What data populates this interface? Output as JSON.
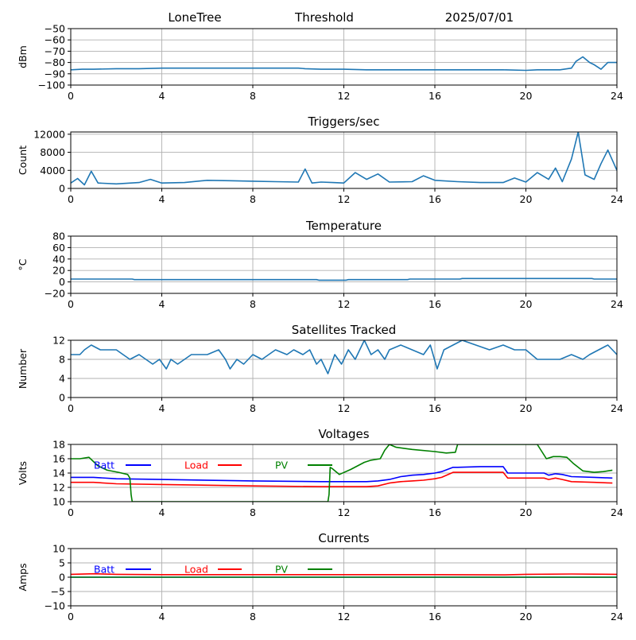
{
  "header": {
    "station": "LoneTree",
    "mode": "Threshold",
    "date": "2025/07/01"
  },
  "colors": {
    "series": "#1f77b4",
    "batt": "#0000ff",
    "load": "#ff0000",
    "pv": "#008000",
    "grid": "#b0b0b0"
  },
  "chart_data": [
    {
      "id": "rssi",
      "type": "line",
      "title": "",
      "ylabel": "dBm",
      "xlim": [
        0,
        24
      ],
      "ylim": [
        -100,
        -50
      ],
      "xticks": [
        0,
        4,
        8,
        12,
        16,
        20,
        24
      ],
      "yticks": [
        -100,
        -90,
        -80,
        -70,
        -60,
        -50
      ],
      "grid": true,
      "series": [
        {
          "color": "#1f77b4",
          "x": [
            0,
            0.5,
            1,
            2,
            3,
            4,
            5,
            6,
            7,
            8,
            9,
            10,
            10.3,
            11,
            12,
            13,
            14,
            15,
            16,
            17,
            18,
            19,
            20,
            20.5,
            21,
            21.5,
            22,
            22.2,
            22.5,
            22.8,
            23,
            23.3,
            23.6,
            24
          ],
          "y": [
            -86.5,
            -86,
            -86,
            -85.5,
            -85.5,
            -85,
            -85,
            -85,
            -85,
            -85,
            -85,
            -85,
            -85.5,
            -86,
            -86,
            -86.5,
            -86.5,
            -86.5,
            -86.5,
            -86.5,
            -86.5,
            -86.5,
            -87,
            -86.5,
            -86.5,
            -86.5,
            -85,
            -79,
            -75,
            -80,
            -82,
            -86,
            -80,
            -80
          ]
        }
      ]
    },
    {
      "id": "triggers",
      "type": "line",
      "title": "Triggers/sec",
      "ylabel": "Count",
      "xlim": [
        0,
        24
      ],
      "ylim": [
        0,
        12500
      ],
      "xticks": [
        0,
        4,
        8,
        12,
        16,
        20,
        24
      ],
      "yticks": [
        0,
        4000,
        8000,
        12000
      ],
      "grid": true,
      "series": [
        {
          "color": "#1f77b4",
          "x": [
            0,
            0.3,
            0.6,
            0.9,
            1.2,
            2,
            3,
            3.5,
            4,
            5,
            6,
            7,
            8,
            9,
            10,
            10.3,
            10.6,
            11,
            11.5,
            12,
            12.5,
            13,
            13.5,
            14,
            15,
            15.5,
            16,
            17,
            18,
            19,
            19.5,
            20,
            20.5,
            21,
            21.3,
            21.6,
            22,
            22.3,
            22.6,
            23,
            23.3,
            23.6,
            24
          ],
          "y": [
            1200,
            2200,
            800,
            3800,
            1200,
            1000,
            1300,
            2000,
            1200,
            1300,
            1800,
            1700,
            1600,
            1500,
            1400,
            4300,
            1200,
            1400,
            1300,
            1200,
            3500,
            2000,
            3200,
            1400,
            1500,
            2800,
            1800,
            1500,
            1300,
            1300,
            2300,
            1400,
            3500,
            2000,
            4500,
            1500,
            6500,
            12500,
            3000,
            2000,
            5500,
            8500,
            4000
          ]
        }
      ]
    },
    {
      "id": "temperature",
      "type": "line",
      "title": "Temperature",
      "ylabel": "°C",
      "xlim": [
        0,
        24
      ],
      "ylim": [
        -20,
        80
      ],
      "xticks": [
        0,
        4,
        8,
        12,
        16,
        20,
        24
      ],
      "yticks": [
        -20,
        0,
        20,
        40,
        60,
        80
      ],
      "grid": true,
      "series": [
        {
          "color": "#1f77b4",
          "x": [
            0,
            2.7,
            2.8,
            10.8,
            10.9,
            12.1,
            12.2,
            14.8,
            14.9,
            17.1,
            17.2,
            19.9,
            20,
            22.9,
            23,
            24
          ],
          "y": [
            5,
            5,
            4,
            4,
            3,
            3,
            4,
            4,
            5,
            5,
            6,
            6,
            6,
            6,
            5,
            5
          ]
        }
      ]
    },
    {
      "id": "satellites",
      "type": "line",
      "title": "Satellites Tracked",
      "ylabel": "Number",
      "xlim": [
        0,
        24
      ],
      "ylim": [
        0,
        12
      ],
      "xticks": [
        0,
        4,
        8,
        12,
        16,
        20,
        24
      ],
      "yticks": [
        0,
        4,
        8,
        12
      ],
      "grid": true,
      "series": [
        {
          "color": "#1f77b4",
          "x": [
            0,
            0.4,
            0.6,
            0.9,
            1.3,
            2,
            2.3,
            2.6,
            3,
            3.3,
            3.6,
            3.9,
            4.2,
            4.4,
            4.7,
            5,
            5.3,
            6,
            6.5,
            6.8,
            7,
            7.3,
            7.6,
            8,
            8.4,
            8.7,
            9,
            9.5,
            9.8,
            10.2,
            10.5,
            10.8,
            11,
            11.3,
            11.6,
            11.9,
            12.2,
            12.5,
            12.7,
            12.9,
            13.2,
            13.5,
            13.8,
            14,
            14.5,
            15,
            15.5,
            15.8,
            16.1,
            16.4,
            16.8,
            17.2,
            17.8,
            18.4,
            19,
            19.5,
            20,
            20.5,
            21,
            21.5,
            22,
            22.5,
            22.8,
            23.2,
            23.6,
            24
          ],
          "y": [
            9,
            9,
            10,
            11,
            10,
            10,
            9,
            8,
            9,
            8,
            7,
            8,
            6,
            8,
            7,
            8,
            9,
            9,
            10,
            8,
            6,
            8,
            7,
            9,
            8,
            9,
            10,
            9,
            10,
            9,
            10,
            7,
            8,
            5,
            9,
            7,
            10,
            8,
            10,
            12,
            9,
            10,
            8,
            10,
            11,
            10,
            9,
            11,
            6,
            10,
            11,
            12,
            11,
            10,
            11,
            10,
            10,
            8,
            8,
            8,
            9,
            8,
            9,
            10,
            11,
            9
          ]
        }
      ]
    },
    {
      "id": "voltages",
      "type": "line",
      "title": "Voltages",
      "ylabel": "Volts",
      "xlim": [
        0,
        24
      ],
      "ylim": [
        10,
        18
      ],
      "xticks": [
        0,
        4,
        8,
        12,
        16,
        20,
        24
      ],
      "yticks": [
        10,
        12,
        14,
        16,
        18
      ],
      "grid": true,
      "legend": [
        "Batt",
        "Load",
        "PV"
      ],
      "series": [
        {
          "name": "Batt",
          "color": "#0000ff",
          "x": [
            0,
            1,
            2,
            4,
            8,
            11,
            12,
            13,
            13.5,
            14,
            14.5,
            15,
            15.5,
            16,
            16.3,
            16.8,
            17,
            18,
            19,
            19.2,
            20,
            20.8,
            21,
            21.3,
            21.6,
            22,
            23,
            23.8
          ],
          "y": [
            13.4,
            13.4,
            13.2,
            13.1,
            12.9,
            12.8,
            12.8,
            12.8,
            12.9,
            13.1,
            13.5,
            13.7,
            13.8,
            14.0,
            14.2,
            14.8,
            14.8,
            14.9,
            14.9,
            14.0,
            14.0,
            14.0,
            13.7,
            13.9,
            13.8,
            13.5,
            13.4,
            13.3
          ]
        },
        {
          "name": "Load",
          "color": "#ff0000",
          "x": [
            0,
            1,
            2,
            4,
            8,
            11,
            12,
            13,
            13.5,
            14,
            14.5,
            15,
            15.5,
            16,
            16.3,
            16.8,
            17,
            18,
            19,
            19.2,
            20,
            20.8,
            21,
            21.3,
            21.6,
            22,
            23,
            23.8
          ],
          "y": [
            12.7,
            12.7,
            12.5,
            12.4,
            12.2,
            12.1,
            12.1,
            12.1,
            12.2,
            12.6,
            12.8,
            12.9,
            13.0,
            13.2,
            13.4,
            14.1,
            14.1,
            14.1,
            14.1,
            13.3,
            13.3,
            13.3,
            13.1,
            13.3,
            13.1,
            12.8,
            12.7,
            12.6
          ]
        },
        {
          "name": "PV",
          "color": "#008000",
          "x": [
            0,
            0.4,
            0.8,
            1.2,
            1.6,
            2.1,
            2.5,
            2.6,
            2.65,
            2.7,
            11.3,
            11.35,
            11.4,
            11.5,
            11.8,
            12.3,
            12.6,
            12.9,
            13.2,
            13.6,
            13.8,
            14.0,
            14.3,
            15.0,
            16.0,
            16.5,
            16.9,
            17.0,
            20.5,
            20.6,
            20.9,
            21.2,
            21.5,
            21.8,
            22.1,
            22.5,
            23.0,
            23.4,
            23.8
          ],
          "y": [
            16.0,
            16.0,
            16.2,
            15.0,
            14.4,
            14.1,
            13.8,
            13.3,
            11.0,
            10.0,
            10.0,
            11.0,
            14.8,
            14.6,
            13.8,
            14.5,
            15.0,
            15.5,
            15.8,
            16.0,
            17.2,
            18.0,
            17.6,
            17.3,
            17.0,
            16.8,
            16.9,
            18.0,
            18.0,
            17.5,
            16.0,
            16.3,
            16.3,
            16.2,
            15.3,
            14.3,
            14.1,
            14.2,
            14.4
          ]
        }
      ]
    },
    {
      "id": "currents",
      "type": "line",
      "title": "Currents",
      "ylabel": "Amps",
      "xlim": [
        0,
        24
      ],
      "ylim": [
        -10,
        10
      ],
      "xticks": [
        0,
        4,
        8,
        12,
        16,
        20,
        24
      ],
      "yticks": [
        -10,
        -5,
        0,
        5,
        10
      ],
      "grid": true,
      "legend": [
        "Batt",
        "Load",
        "PV"
      ],
      "series": [
        {
          "name": "Batt",
          "color": "#0000ff",
          "x": [
            0,
            24
          ],
          "y": [
            0,
            0
          ]
        },
        {
          "name": "Load",
          "color": "#ff0000",
          "x": [
            0,
            1,
            2,
            4,
            8,
            12,
            16,
            19,
            20,
            22,
            24
          ],
          "y": [
            1.0,
            1.2,
            1.0,
            0.9,
            0.9,
            0.9,
            0.9,
            0.8,
            1.0,
            1.1,
            1.0
          ]
        },
        {
          "name": "PV",
          "color": "#008000",
          "x": [
            0,
            24
          ],
          "y": [
            0,
            0
          ]
        }
      ]
    }
  ]
}
